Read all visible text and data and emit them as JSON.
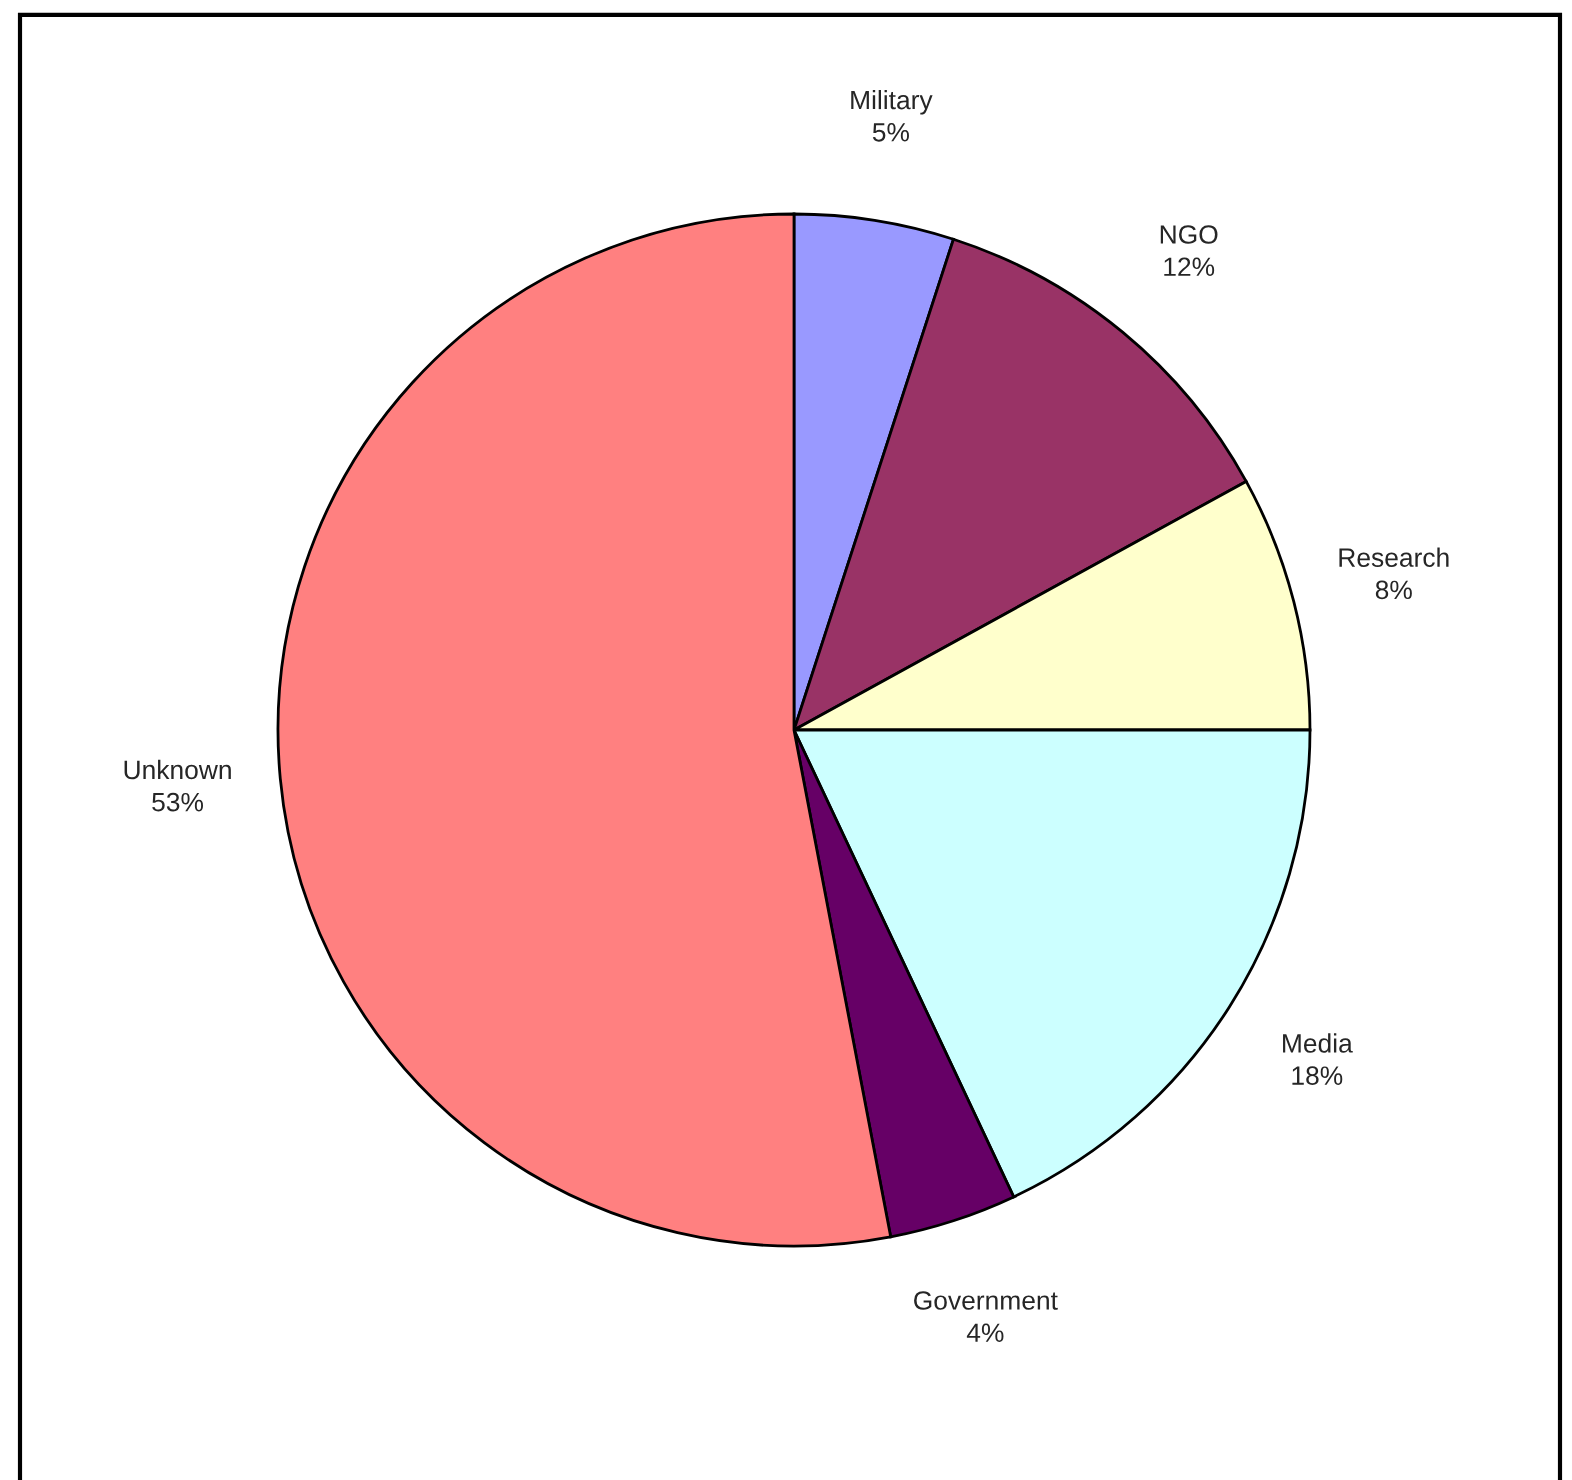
{
  "chart_data": {
    "type": "pie",
    "categories": [
      "Military",
      "NGO",
      "Research",
      "Media",
      "Government",
      "Unknown"
    ],
    "values": [
      5,
      12,
      8,
      18,
      4,
      53
    ],
    "value_labels": [
      "5%",
      "12%",
      "8%",
      "18%",
      "4%",
      "53%"
    ],
    "colors": [
      "#9999ff",
      "#993366",
      "#ffffcc",
      "#ccffff",
      "#660066",
      "#ff8080"
    ],
    "legend": false
  }
}
